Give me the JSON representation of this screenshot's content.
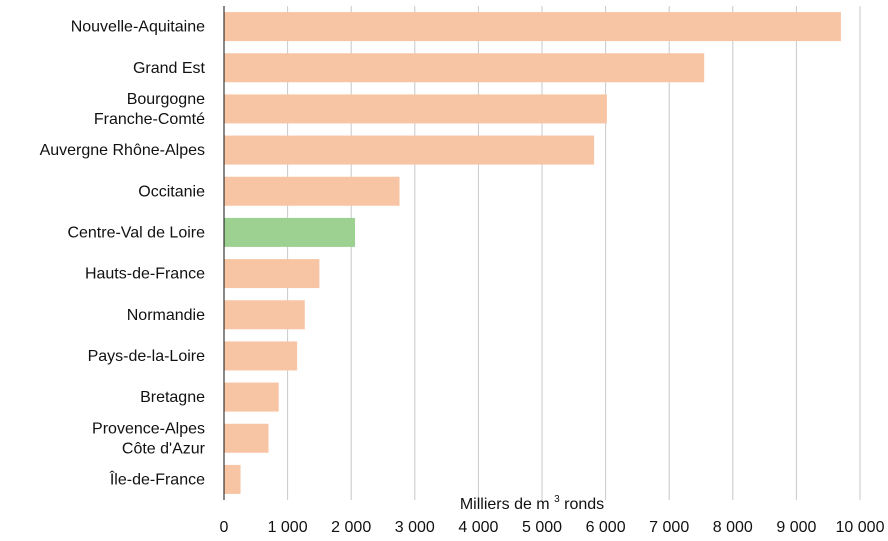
{
  "chart_data": {
    "type": "bar",
    "orientation": "horizontal",
    "categories": [
      [
        "Nouvelle-Aquitaine"
      ],
      [
        "Grand Est"
      ],
      [
        "Bourgogne",
        "Franche-Comté"
      ],
      [
        "Auvergne Rhône-Alpes"
      ],
      [
        "Occitanie"
      ],
      [
        "Centre-Val de Loire"
      ],
      [
        "Hauts-de-France"
      ],
      [
        "Normandie"
      ],
      [
        "Pays-de-la-Loire"
      ],
      [
        "Bretagne"
      ],
      [
        "Provence-Alpes",
        "Côte d'Azur"
      ],
      [
        "Île-de-France"
      ]
    ],
    "values": [
      9700,
      7550,
      6020,
      5820,
      2760,
      2060,
      1500,
      1270,
      1150,
      860,
      700,
      260
    ],
    "highlight_index": 5,
    "colors": {
      "bar": "#f8c5a4",
      "highlight": "#9dd192",
      "grid": "#c8c8c8",
      "axis": "#111111"
    },
    "xlim": [
      0,
      10000
    ],
    "xticks": [
      0,
      1000,
      2000,
      3000,
      4000,
      5000,
      6000,
      7000,
      8000,
      9000,
      10000
    ],
    "xtick_labels": [
      "0",
      "1 000",
      "2 000",
      "3 000",
      "4 000",
      "5 000",
      "6 000",
      "7 000",
      "8 000",
      "9 000",
      "10 000"
    ],
    "xlabel": {
      "prefix": "Milliers de m",
      "superscript": "3",
      "suffix": " ronds"
    },
    "grid": true
  }
}
